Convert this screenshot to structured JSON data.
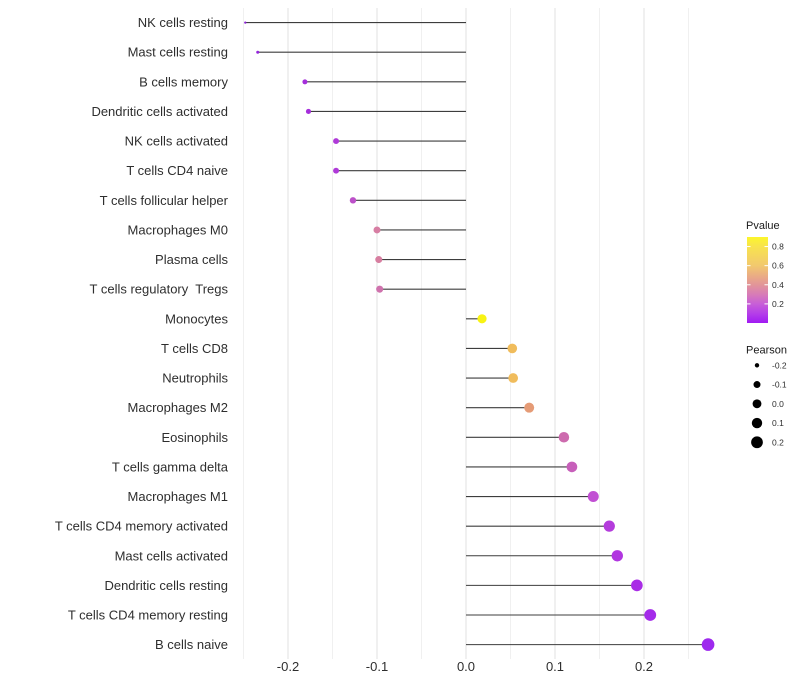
{
  "chart_data": {
    "type": "lollipop",
    "orientation": "horizontal",
    "title": "",
    "xlabel": "",
    "ylabel": "",
    "baseline": 0,
    "xlim": [
      -0.274,
      0.298
    ],
    "x_ticks": [
      -0.2,
      -0.1,
      0.0,
      0.1,
      0.2
    ],
    "x_tick_labels": [
      "-0.2",
      "-0.1",
      "0.0",
      "0.1",
      "0.2"
    ],
    "x_minor_ticks": [
      -0.25,
      -0.15,
      -0.05,
      0.05,
      0.15,
      0.25
    ],
    "grid": {
      "major_color": "#e2e2e2",
      "minor_color": "#f0f0f0",
      "horizontal": false
    },
    "stem_color": "#3d3d3d",
    "axis_text_color": "#2e2e2e",
    "points": [
      {
        "label": "NK cells resting",
        "pearson": -0.248,
        "color": "#8A1FD4"
      },
      {
        "label": "Mast cells resting",
        "pearson": -0.234,
        "color": "#9525DC"
      },
      {
        "label": "B cells memory",
        "pearson": -0.181,
        "color": "#A52EDB"
      },
      {
        "label": "Dendritic cells activated",
        "pearson": -0.177,
        "color": "#A52EDB"
      },
      {
        "label": "NK cells activated",
        "pearson": -0.146,
        "color": "#AF3AD8"
      },
      {
        "label": "T cells CD4 naive",
        "pearson": -0.146,
        "color": "#AF3AD8"
      },
      {
        "label": "T cells follicular helper",
        "pearson": -0.127,
        "color": "#BC50C9"
      },
      {
        "label": "Macrophages M0",
        "pearson": -0.1,
        "color": "#D77EA3"
      },
      {
        "label": "Plasma cells",
        "pearson": -0.098,
        "color": "#D77EA0"
      },
      {
        "label": "T cells regulatory  Tregs",
        "pearson": -0.097,
        "color": "#CF72AD"
      },
      {
        "label": "Monocytes",
        "pearson": 0.018,
        "color": "#F8F313"
      },
      {
        "label": "T cells CD8",
        "pearson": 0.052,
        "color": "#F0BC5C"
      },
      {
        "label": "Neutrophils",
        "pearson": 0.053,
        "color": "#F0BC5C"
      },
      {
        "label": "Macrophages M2",
        "pearson": 0.071,
        "color": "#E59B76"
      },
      {
        "label": "Eosinophils",
        "pearson": 0.11,
        "color": "#CD6BAE"
      },
      {
        "label": "T cells gamma delta",
        "pearson": 0.119,
        "color": "#C75FBA"
      },
      {
        "label": "Macrophages M1",
        "pearson": 0.143,
        "color": "#C14FD3"
      },
      {
        "label": "T cells CD4 memory activated",
        "pearson": 0.161,
        "color": "#B43CDC"
      },
      {
        "label": "Mast cells activated",
        "pearson": 0.17,
        "color": "#B136E0"
      },
      {
        "label": "Dendritic cells resting",
        "pearson": 0.192,
        "color": "#A92CE6"
      },
      {
        "label": "T cells CD4 memory resting",
        "pearson": 0.207,
        "color": "#A42BEA"
      },
      {
        "label": "B cells naive",
        "pearson": 0.272,
        "color": "#9E29EE"
      }
    ],
    "legend_pvalue": {
      "title": "Pvalue",
      "bar_range": [
        0,
        0.9
      ],
      "ticks": [
        0.8,
        0.6,
        0.4,
        0.2
      ],
      "tick_labels": [
        "0.8",
        "0.6",
        "0.4",
        "0.2"
      ],
      "gradient_top_to_bottom": [
        {
          "offset": 0,
          "color": "#FCF62B"
        },
        {
          "offset": 0.105,
          "color": "#F8E44C"
        },
        {
          "offset": 0.33,
          "color": "#F2C96E"
        },
        {
          "offset": 0.455,
          "color": "#EAAB85"
        },
        {
          "offset": 0.555,
          "color": "#E29599"
        },
        {
          "offset": 0.67,
          "color": "#D77BB8"
        },
        {
          "offset": 0.78,
          "color": "#C75ED8"
        },
        {
          "offset": 0.9,
          "color": "#B33BEA"
        },
        {
          "offset": 1,
          "color": "#A01AF2"
        }
      ]
    },
    "legend_pearson": {
      "title": "Pearson",
      "entries": [
        {
          "value": -0.2,
          "label": "-0.2"
        },
        {
          "value": -0.1,
          "label": "-0.1"
        },
        {
          "value": 0.0,
          "label": "0.0"
        },
        {
          "value": 0.1,
          "label": "0.1"
        },
        {
          "value": 0.2,
          "label": "0.2"
        }
      ],
      "dot_color": "#000000"
    }
  }
}
